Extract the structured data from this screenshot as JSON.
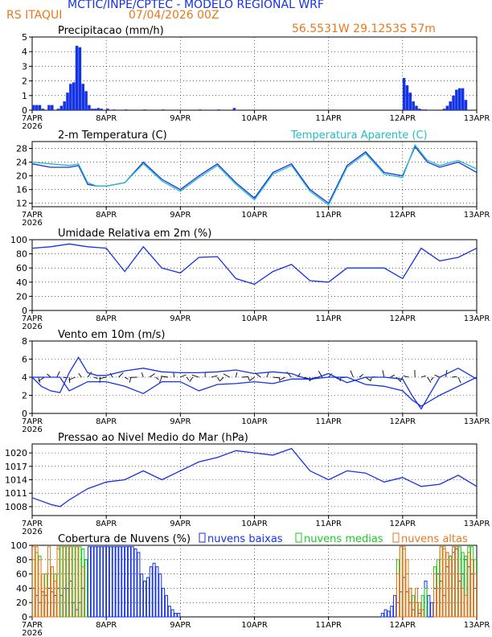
{
  "header": {
    "line1": "MCTIC/INPE/CPTEC - MODELO REGIONAL WRF",
    "station": "RS ITAQUI",
    "init": "07/04/2026 00Z",
    "coords": "56.5531W 29.1253S 57m"
  },
  "colors": {
    "blue": "#1432e6",
    "orange": "#e8781e",
    "cyan": "#23bcc4",
    "green": "#1ec81e",
    "black": "#000000"
  },
  "x_axis": {
    "ticks": [
      "7APR",
      "8APR",
      "9APR",
      "10APR",
      "11APR",
      "12APR",
      "13APR"
    ],
    "year": "2026"
  },
  "chart_data": [
    {
      "type": "bar",
      "title": "Precipitacao (mm/h)",
      "ylim": [
        0,
        5
      ],
      "yticks": [
        0,
        1,
        2,
        3,
        4,
        5
      ],
      "x_unit": "hours since 7APR 00Z",
      "x": [
        0,
        1,
        2,
        3,
        5,
        6,
        8,
        9,
        10,
        11,
        12,
        13,
        14,
        15,
        16,
        17,
        18,
        19,
        20,
        21,
        22,
        24,
        26,
        30,
        36,
        42,
        54,
        60,
        65,
        120,
        121,
        122,
        123,
        124,
        125,
        126,
        127,
        133,
        134,
        135,
        136,
        137,
        138,
        139,
        140
      ],
      "values": [
        0.35,
        0.35,
        0.35,
        0.1,
        0.35,
        0.35,
        0.1,
        0.3,
        0.6,
        1.2,
        1.8,
        1.9,
        4.4,
        4.3,
        1.8,
        1.3,
        0.35,
        0.1,
        0.1,
        0.15,
        0.1,
        0.1,
        0.05,
        0.05,
        0.05,
        0.05,
        0.05,
        0.05,
        0.15,
        2.2,
        1.7,
        1.2,
        0.6,
        0.3,
        0.1,
        0.05,
        0.05,
        0.1,
        0.3,
        0.6,
        1.0,
        1.4,
        1.5,
        1.5,
        0.7
      ],
      "series": [
        {
          "name": "",
          "color": "#1432e6"
        }
      ]
    },
    {
      "type": "line",
      "title": "2-m Temperatura (C)",
      "legend": "Temperatura Aparente (C)",
      "ylim": [
        11,
        30
      ],
      "yticks": [
        12,
        16,
        20,
        24,
        28
      ],
      "x_unit": "hours since 7APR 00Z",
      "x": [
        0,
        6,
        12,
        15,
        18,
        21,
        24,
        30,
        36,
        42,
        48,
        54,
        60,
        66,
        72,
        78,
        84,
        90,
        96,
        102,
        108,
        114,
        120,
        124,
        128,
        132,
        138,
        144
      ],
      "series": [
        {
          "name": "2-m Temperatura (C)",
          "color": "#1432e6",
          "values": [
            23.5,
            22.5,
            22.5,
            23,
            17.5,
            17,
            17,
            18,
            24,
            19,
            16,
            20,
            23.5,
            18,
            13.5,
            21,
            23.5,
            16,
            12,
            23,
            27,
            21,
            20,
            28.5,
            24,
            22.5,
            24,
            21
          ]
        },
        {
          "name": "Temperatura Aparente (C)",
          "color": "#23bcc4",
          "values": [
            24,
            23.5,
            23,
            23.5,
            18,
            17,
            17,
            18,
            23.5,
            18.5,
            15.5,
            19.5,
            23,
            17.5,
            13,
            20.5,
            23,
            15.5,
            11.5,
            22.5,
            26.5,
            20.5,
            19.5,
            29,
            24.5,
            23,
            24.5,
            22
          ]
        }
      ]
    },
    {
      "type": "line",
      "title": "Umidade Relativa em 2m (%)",
      "ylim": [
        0,
        100
      ],
      "yticks": [
        0,
        20,
        40,
        60,
        80,
        100
      ],
      "x_unit": "hours since 7APR 00Z",
      "x": [
        0,
        6,
        12,
        18,
        24,
        30,
        36,
        42,
        48,
        54,
        60,
        66,
        72,
        78,
        84,
        90,
        96,
        102,
        108,
        114,
        120,
        126,
        132,
        138,
        144
      ],
      "series": [
        {
          "name": "",
          "color": "#1432e6",
          "values": [
            88,
            90,
            94,
            90,
            88,
            55,
            90,
            60,
            53,
            75,
            76,
            45,
            37,
            55,
            65,
            42,
            40,
            60,
            60,
            60,
            45,
            88,
            70,
            75,
            88
          ]
        }
      ]
    },
    {
      "type": "line",
      "title": "Vento em 10m (m/s)",
      "ylim": [
        0,
        8
      ],
      "yticks": [
        0,
        2,
        4,
        6,
        8
      ],
      "x_unit": "hours since 7APR 00Z",
      "x": [
        0,
        3,
        6,
        9,
        12,
        15,
        18,
        21,
        24,
        30,
        36,
        42,
        48,
        54,
        60,
        66,
        72,
        78,
        84,
        90,
        96,
        102,
        108,
        114,
        120,
        123,
        126,
        132,
        138,
        144
      ],
      "series": [
        {
          "name": "",
          "color": "#1432e6",
          "values": [
            4,
            3,
            2.5,
            2.3,
            4.5,
            6.2,
            4.5,
            4.2,
            4.2,
            4.7,
            5,
            4.6,
            4.5,
            4.5,
            4.6,
            4.8,
            4.4,
            4.6,
            4.4,
            3.7,
            4.4,
            3.4,
            4,
            4,
            3.8,
            2,
            0.5,
            4,
            5,
            3.8
          ]
        },
        {
          "name": "",
          "color": "#1432e6",
          "values": [
            4,
            4,
            4,
            4,
            2.5,
            3,
            3.5,
            3.5,
            3.5,
            3,
            2.2,
            3.5,
            3.5,
            2.5,
            3.2,
            3.3,
            3.5,
            3.3,
            3.8,
            3.8,
            4,
            4,
            3.2,
            3,
            2.5,
            1.5,
            0.8,
            2,
            3,
            4
          ]
        }
      ],
      "barbs": {
        "color": "#000000",
        "baseline": 4
      }
    },
    {
      "type": "line",
      "title": "Pressao ao Nivel Medio do Mar (hPa)",
      "ylim": [
        1006,
        1022
      ],
      "yticks": [
        1008,
        1011,
        1014,
        1017,
        1020
      ],
      "x_unit": "hours since 7APR 00Z",
      "x": [
        0,
        6,
        9,
        12,
        18,
        24,
        30,
        36,
        42,
        48,
        54,
        60,
        66,
        72,
        78,
        84,
        90,
        96,
        102,
        108,
        114,
        120,
        126,
        132,
        138,
        144
      ],
      "series": [
        {
          "name": "",
          "color": "#1432e6",
          "values": [
            1010,
            1008.5,
            1008,
            1009.5,
            1012,
            1013.5,
            1014,
            1016,
            1014,
            1016,
            1018,
            1019,
            1020.5,
            1020,
            1019.5,
            1021,
            1016,
            1014,
            1016,
            1015.5,
            1013.5,
            1014.5,
            1012.5,
            1013,
            1015,
            1012.5
          ]
        }
      ]
    },
    {
      "type": "bar",
      "title": "Cobertura de Nuvens (%)",
      "ylim": [
        0,
        100
      ],
      "yticks": [
        0,
        20,
        40,
        60,
        80,
        100
      ],
      "x_unit": "hours since 7APR 00Z",
      "series": [
        {
          "name": "nuvens baixas",
          "color": "#1432e6",
          "x": [
            0,
            1,
            2,
            3,
            4,
            5,
            6,
            7,
            8,
            9,
            10,
            11,
            12,
            13,
            14,
            15,
            16,
            17,
            18,
            19,
            20,
            21,
            22,
            23,
            24,
            25,
            26,
            27,
            28,
            29,
            30,
            31,
            32,
            33,
            34,
            35,
            36,
            37,
            38,
            39,
            40,
            41,
            42,
            43,
            44,
            45,
            46,
            47,
            48,
            113,
            114,
            115,
            116,
            117,
            118,
            119,
            120,
            121,
            122,
            123,
            124,
            125,
            126,
            127,
            128,
            129,
            130,
            131,
            132,
            133,
            134,
            135,
            136,
            137,
            138,
            139,
            140,
            141,
            142,
            143
          ],
          "values": [
            40,
            30,
            20,
            35,
            30,
            40,
            35,
            30,
            40,
            30,
            40,
            40,
            50,
            20,
            10,
            20,
            40,
            80,
            98,
            98,
            98,
            98,
            98,
            98,
            98,
            98,
            98,
            98,
            98,
            98,
            98,
            98,
            98,
            95,
            90,
            60,
            50,
            55,
            70,
            75,
            70,
            60,
            40,
            30,
            15,
            10,
            5,
            5,
            0,
            5,
            10,
            8,
            15,
            30,
            20,
            35,
            55,
            35,
            20,
            10,
            20,
            5,
            10,
            50,
            30,
            20,
            40,
            60,
            50,
            30,
            70,
            85,
            90,
            95,
            50,
            60,
            80,
            70,
            60,
            40
          ]
        },
        {
          "name": "nuvens medias",
          "color": "#1ec81e",
          "x": [
            0,
            1,
            2,
            3,
            4,
            5,
            6,
            7,
            8,
            9,
            10,
            11,
            12,
            13,
            14,
            15,
            16,
            17,
            118,
            119,
            120,
            121,
            122,
            123,
            124,
            125,
            126,
            127,
            130,
            131,
            132,
            133,
            134,
            135,
            136,
            137,
            138,
            139,
            140,
            141,
            142,
            143
          ],
          "values": [
            80,
            90,
            85,
            30,
            60,
            80,
            70,
            60,
            95,
            98,
            98,
            98,
            98,
            98,
            98,
            98,
            95,
            80,
            80,
            98,
            95,
            60,
            40,
            30,
            20,
            10,
            30,
            40,
            70,
            80,
            98,
            95,
            90,
            85,
            98,
            98,
            98,
            90,
            85,
            98,
            98,
            80
          ]
        },
        {
          "name": "nuvens altas",
          "color": "#e8781e",
          "x": [
            0,
            1,
            2,
            3,
            4,
            5,
            6,
            7,
            8,
            10,
            12,
            14,
            16,
            118,
            119,
            120,
            121,
            122,
            123,
            124,
            125,
            126,
            130,
            131,
            132,
            133,
            134,
            135,
            136,
            137,
            138,
            139,
            140,
            141,
            142,
            143
          ],
          "values": [
            98,
            98,
            80,
            60,
            40,
            98,
            70,
            50,
            98,
            98,
            98,
            98,
            70,
            60,
            98,
            98,
            80,
            40,
            20,
            40,
            20,
            10,
            60,
            40,
            98,
            98,
            90,
            80,
            98,
            98,
            60,
            40,
            30,
            90,
            80,
            60
          ]
        }
      ]
    }
  ]
}
